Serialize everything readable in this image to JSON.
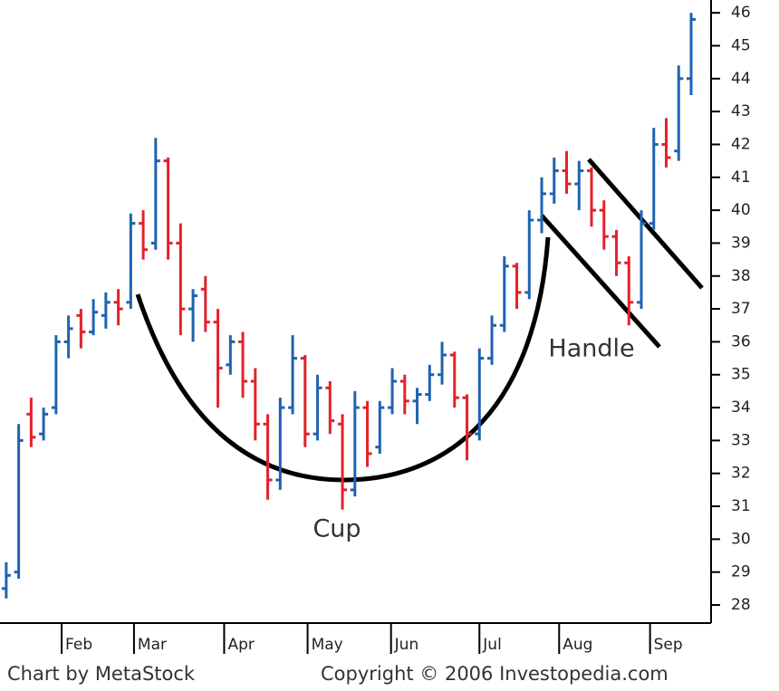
{
  "chart_data": {
    "type": "ohlc",
    "annotations": [
      "Cup",
      "Handle"
    ],
    "source": "Chart by MetaStock",
    "copyright": "Copyright © 2006 Investopedia.com",
    "up_color": "#1f63b0",
    "down_color": "#e3212b",
    "x": [
      0,
      1,
      2,
      3,
      4,
      5,
      6,
      7,
      8,
      9,
      10,
      11,
      12,
      13,
      14,
      15,
      16,
      17,
      18,
      19,
      20,
      21,
      22,
      23,
      24,
      25,
      26,
      27,
      28,
      29,
      30,
      31,
      32,
      33,
      34,
      35,
      36,
      37,
      38,
      39,
      40,
      41,
      42,
      43,
      44,
      45,
      46,
      47,
      48,
      49,
      50,
      51,
      52,
      53,
      54,
      55
    ],
    "open": [
      28.5,
      29,
      33.8,
      33.2,
      34,
      36,
      36.8,
      36.3,
      36.8,
      37.2,
      37.2,
      39.6,
      39,
      41.5,
      39,
      37,
      37.6,
      36.6,
      35.3,
      36,
      34.8,
      33.5,
      31.8,
      34,
      35.5,
      33.2,
      34.6,
      33.5,
      31.5,
      34,
      32.8,
      34,
      34.8,
      34.2,
      34.4,
      35,
      35.6,
      34.3,
      33.2,
      35.5,
      36.5,
      38.3,
      37.5,
      39.7,
      40.5,
      41.2,
      40.8,
      41.2,
      40,
      39.2,
      38.4,
      37.2,
      39.6,
      42,
      41.8,
      44
    ],
    "high": [
      29.3,
      33.5,
      34.3,
      34,
      36.2,
      36.8,
      37,
      37.3,
      37.5,
      37.6,
      39.9,
      40,
      42.2,
      41.6,
      39.6,
      37.6,
      38,
      37,
      36.2,
      36.3,
      35.2,
      33.8,
      34.3,
      36.2,
      35.6,
      35,
      34.8,
      33.8,
      34.5,
      34.2,
      34.2,
      35.2,
      35,
      34.6,
      35.3,
      36,
      35.7,
      34.4,
      35.8,
      36.8,
      38.6,
      38.4,
      40,
      41,
      41.6,
      41.8,
      41.5,
      41.3,
      40.3,
      39.4,
      38.6,
      40,
      42.5,
      42.8,
      44.4,
      46
    ],
    "low": [
      28.2,
      28.8,
      32.8,
      33,
      33.8,
      35.5,
      35.8,
      36.2,
      36.4,
      36.5,
      37,
      38.5,
      38.8,
      38.5,
      36.2,
      36,
      36.3,
      34,
      35,
      34.3,
      33,
      31.2,
      31.5,
      33.8,
      32.8,
      33,
      33.2,
      30.9,
      31.3,
      32.2,
      32.6,
      33.8,
      33.8,
      33.5,
      34.2,
      34.7,
      34,
      32.4,
      33,
      35.3,
      36.3,
      37,
      37.3,
      39.3,
      40.2,
      40.5,
      40,
      39.5,
      38.8,
      38,
      36.5,
      37,
      39.4,
      41.3,
      41.5,
      43.5
    ],
    "close": [
      28.9,
      33,
      33.1,
      33.8,
      36,
      36.4,
      36.3,
      36.9,
      37.2,
      37,
      39.6,
      38.8,
      41.5,
      39,
      37,
      37.4,
      36.6,
      35.2,
      36,
      34.8,
      33.5,
      31.8,
      34,
      35.5,
      33.2,
      34.6,
      33.6,
      31.5,
      34,
      32.6,
      34,
      34.8,
      34.2,
      34.4,
      35,
      35.6,
      34.3,
      33.2,
      35.5,
      36.5,
      38.3,
      37.5,
      39.7,
      40.5,
      41.2,
      40.8,
      41.2,
      40,
      39.2,
      38.4,
      37.2,
      39.6,
      42,
      41.6,
      44,
      45.8
    ],
    "xlim": [
      -0.5,
      56.6
    ],
    "xticks": [
      {
        "value": 4.45,
        "label": "Feb"
      },
      {
        "value": 10.26,
        "label": "Mar"
      },
      {
        "value": 17.5,
        "label": "Apr"
      },
      {
        "value": 24.2,
        "label": "May"
      },
      {
        "value": 30.9,
        "label": "Jun"
      },
      {
        "value": 38.0,
        "label": "Jul"
      },
      {
        "value": 44.4,
        "label": "Aug"
      },
      {
        "value": 51.7,
        "label": "Sep"
      }
    ],
    "ylim": [
      27.45,
      46.39
    ],
    "yticks": [
      28,
      29,
      30,
      31,
      32,
      33,
      34,
      35,
      36,
      37,
      38,
      39,
      40,
      41,
      42,
      43,
      44,
      45,
      46
    ]
  }
}
